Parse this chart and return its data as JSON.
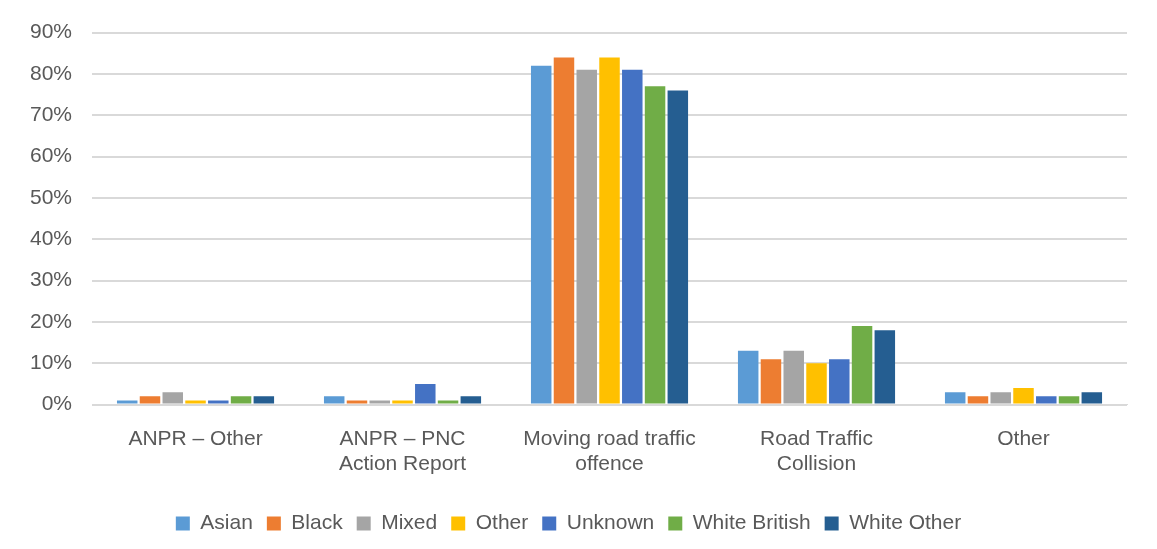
{
  "chart_data": {
    "type": "bar",
    "categories": [
      "ANPR – Other",
      "ANPR – PNC Action Report",
      "Moving road traffic offence",
      "Road Traffic Collision",
      "Other"
    ],
    "series": [
      {
        "name": "Asian",
        "color": "#5b9bd5",
        "values": [
          1,
          2,
          82,
          13,
          3
        ]
      },
      {
        "name": "Black",
        "color": "#ed7d31",
        "values": [
          2,
          1,
          84,
          11,
          2
        ]
      },
      {
        "name": "Mixed",
        "color": "#a5a5a5",
        "values": [
          3,
          1,
          81,
          13,
          3
        ]
      },
      {
        "name": "Other",
        "color": "#ffc000",
        "values": [
          1,
          1,
          84,
          10,
          4
        ]
      },
      {
        "name": "Unknown",
        "color": "#4472c4",
        "values": [
          1,
          5,
          81,
          11,
          2
        ]
      },
      {
        "name": "White British",
        "color": "#70ad47",
        "values": [
          2,
          1,
          77,
          19,
          2
        ]
      },
      {
        "name": "White Other",
        "color": "#255e91",
        "values": [
          2,
          2,
          76,
          18,
          3
        ]
      }
    ],
    "ylim": [
      0,
      90
    ],
    "yticks": [
      {
        "value": 0,
        "label": "0%"
      },
      {
        "value": 10,
        "label": "10%"
      },
      {
        "value": 20,
        "label": "20%"
      },
      {
        "value": 30,
        "label": "30%"
      },
      {
        "value": 40,
        "label": "40%"
      },
      {
        "value": 50,
        "label": "50%"
      },
      {
        "value": 60,
        "label": "60%"
      },
      {
        "value": 70,
        "label": "70%"
      },
      {
        "value": 80,
        "label": "80%"
      },
      {
        "value": 90,
        "label": "90%"
      }
    ],
    "grid": "y",
    "legend": "bottom"
  }
}
